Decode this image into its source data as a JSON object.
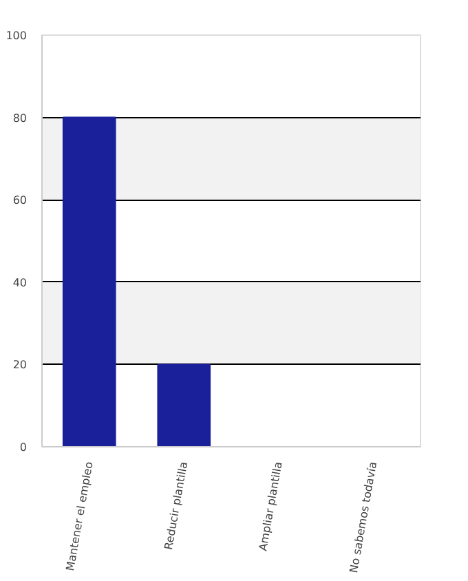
{
  "chart_data": {
    "type": "bar",
    "categories": [
      "Mantener el empleo",
      "Reducir plantilla",
      "Ampliar plantilla",
      "No sabemos todavía"
    ],
    "values": [
      80,
      20,
      0,
      0
    ],
    "color": "#1a1f9a",
    "ylim": [
      0,
      100
    ],
    "yticks": [
      0,
      20,
      40,
      60,
      80,
      100
    ],
    "grid": "y"
  }
}
